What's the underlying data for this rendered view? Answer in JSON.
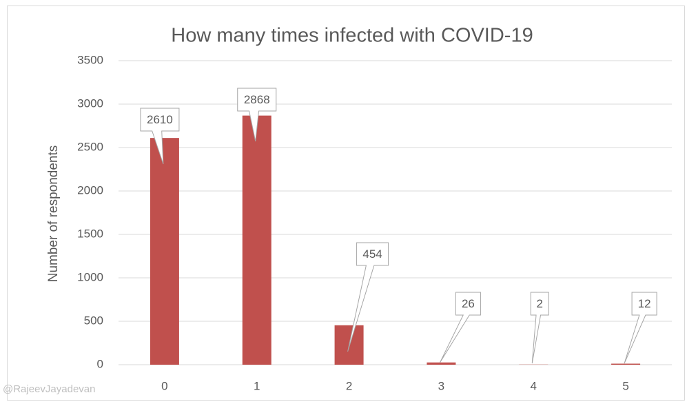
{
  "chart_data": {
    "type": "bar",
    "title": "How many times infected with COVID-19",
    "y_label": "Number of respondents",
    "watermark": "@RajeevJayadevan",
    "categories": [
      "0",
      "1",
      "2",
      "3",
      "4",
      "5"
    ],
    "values": [
      2610,
      2868,
      454,
      26,
      2,
      12
    ],
    "color": "#c0504d",
    "ylim": [
      0,
      3500
    ],
    "yticks": [
      0,
      500,
      1000,
      1500,
      2000,
      2500,
      3000,
      3500
    ],
    "grid": true
  }
}
